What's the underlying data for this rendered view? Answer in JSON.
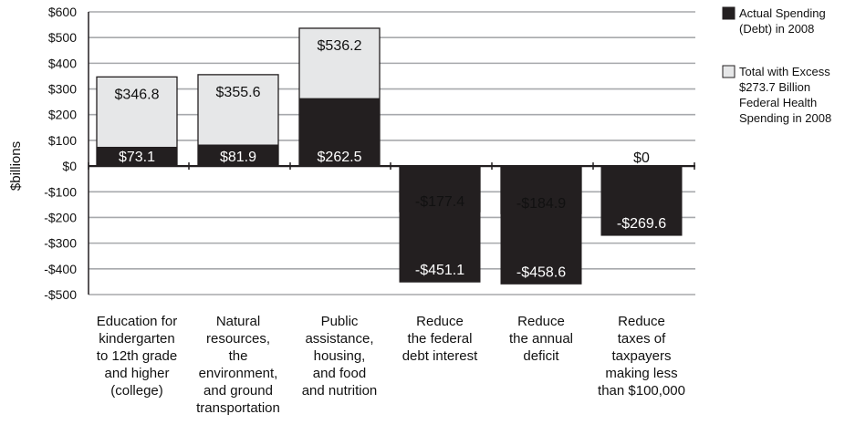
{
  "chart_data": {
    "type": "bar",
    "ylabel": "$billions",
    "ylim": [
      -500,
      600
    ],
    "yticks": [
      600,
      500,
      400,
      300,
      200,
      100,
      0,
      -100,
      -200,
      -300,
      -400,
      -500
    ],
    "ytick_labels": [
      "$600",
      "$500",
      "$400",
      "$300",
      "$200",
      "$100",
      "$0",
      "-$100",
      "-$200",
      "-$300",
      "-$400",
      "-$500"
    ],
    "grid": true,
    "legend_position": "right",
    "categories": [
      [
        "Education for",
        "kindergarten",
        "to 12th grade",
        "and higher",
        "(college)"
      ],
      [
        "Natural",
        "resources,",
        "the",
        "environment,",
        "and ground",
        "transportation"
      ],
      [
        "Public",
        "assistance,",
        "housing,",
        "and food",
        "and nutrition"
      ],
      [
        "Reduce",
        "the federal",
        "debt interest"
      ],
      [
        "Reduce",
        "the annual",
        "deficit"
      ],
      [
        "Reduce",
        "taxes of",
        "taxpayers",
        "making less",
        "than $100,000"
      ]
    ],
    "series": [
      {
        "name": "Actual Spending (Debt) in 2008",
        "legend_lines": [
          "Actual Spending",
          "(Debt) in 2008"
        ],
        "color": "#231f20",
        "values": [
          73.1,
          81.9,
          262.5,
          -451.1,
          -458.6,
          -269.6
        ],
        "labels": [
          "$73.1",
          "$81.9",
          "$262.5",
          "-$451.1",
          "-$458.6",
          "-$269.6"
        ]
      },
      {
        "name": "Total with Excess $273.7 Billion Federal Health Spending in 2008",
        "legend_lines": [
          "Total with Excess",
          "$273.7 Billion",
          "Federal Health",
          "Spending in 2008"
        ],
        "color": "#e6e7e8",
        "values": [
          346.8,
          355.6,
          536.2,
          -177.4,
          -184.9,
          0
        ],
        "labels": [
          "$346.8",
          "$355.6",
          "$536.2",
          "-$177.4",
          "-$184.9",
          "$0"
        ]
      }
    ]
  }
}
